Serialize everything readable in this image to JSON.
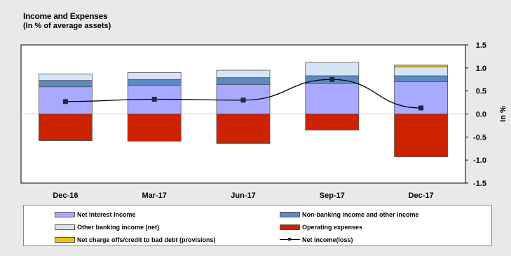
{
  "title": "Income and Expenses",
  "subtitle": "(In % of average assets)",
  "chart_data": {
    "type": "bar",
    "categories": [
      "Dec-16",
      "Mar-17",
      "Jun-17",
      "Sep-17",
      "Dec-17"
    ],
    "series": [
      {
        "name": "Net Interest Income",
        "color": "#a9a9ff",
        "values": [
          0.59,
          0.62,
          0.64,
          0.66,
          0.7
        ]
      },
      {
        "name": "Non-banking income and other income",
        "color": "#5b8ac4",
        "values": [
          0.14,
          0.13,
          0.15,
          0.17,
          0.13
        ]
      },
      {
        "name": "Other banking income (net)",
        "color": "#d5e5f6",
        "values": [
          0.14,
          0.15,
          0.16,
          0.29,
          0.19
        ]
      },
      {
        "name": "Operating expenses",
        "color": "#cc2200",
        "values": [
          -0.57,
          -0.59,
          -0.63,
          -0.34,
          -0.93
        ]
      },
      {
        "name": "Net charge offs/credit to bad debt (provisions)",
        "color": "#f5c200",
        "values": [
          -0.01,
          0.0,
          -0.01,
          -0.01,
          0.04
        ]
      }
    ],
    "line": {
      "name": "Net income(loss)",
      "values": [
        0.27,
        0.32,
        0.3,
        0.75,
        0.13
      ]
    },
    "ylim": [
      -1.5,
      1.5
    ],
    "yticks": [
      1.5,
      1.0,
      0.5,
      0.0,
      -0.5,
      -1.0,
      -1.5
    ],
    "ytick_labels": [
      "1.5",
      "1.0",
      "0.5",
      "0.0",
      "-0.5",
      "-1.0",
      "-1.5"
    ],
    "ylabel": "In %",
    "xlabel": "",
    "legend_position": "bottom"
  },
  "legend": [
    {
      "label": "Net Interest Income",
      "color": "#a9a9ff",
      "kind": "box"
    },
    {
      "label": "Non-banking income and other income",
      "color": "#5b8ac4",
      "kind": "box"
    },
    {
      "label": "Other banking income (net)",
      "color": "#d5e5f6",
      "kind": "box"
    },
    {
      "label": "Operating expenses",
      "color": "#cc2200",
      "kind": "box"
    },
    {
      "label": "Net charge offs/credit to bad debt (provisions)",
      "color": "#f5c200",
      "kind": "box"
    },
    {
      "label": "Net income(loss)",
      "color": "#000000",
      "kind": "line"
    }
  ]
}
